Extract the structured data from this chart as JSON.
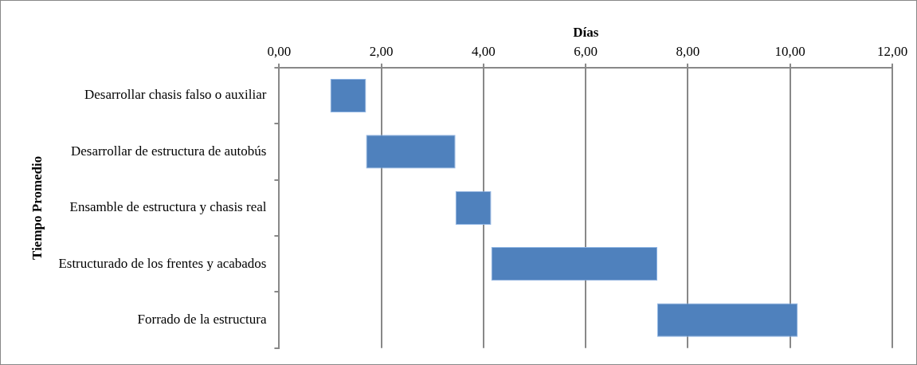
{
  "chart_data": {
    "type": "bar",
    "orientation": "horizontal",
    "xlabel": "Días",
    "ylabel": "Tiempo Promedio",
    "categories": [
      "Desarrollar chasis falso o auxiliar",
      "Desarrollar de estructura de autobús",
      "Ensamble de estructura y chasis real",
      "Estructurado de los frentes y acabados",
      "Forrado de la estructura"
    ],
    "base": [
      1,
      1.7,
      3.45,
      4.15,
      7.4
    ],
    "values": [
      0.7,
      1.75,
      0.7,
      3.25,
      2.75
    ],
    "color": "#4f81bd",
    "xlim": [
      0,
      12
    ],
    "xticks": [
      {
        "value": 0,
        "label": "0,00"
      },
      {
        "value": 2,
        "label": "2,00"
      },
      {
        "value": 4,
        "label": "4,00"
      },
      {
        "value": 6,
        "label": "6,00"
      },
      {
        "value": 8,
        "label": "8,00"
      },
      {
        "value": 10,
        "label": "10,00"
      },
      {
        "value": 12,
        "label": "12,00"
      }
    ],
    "grid": "x",
    "legend": false
  }
}
